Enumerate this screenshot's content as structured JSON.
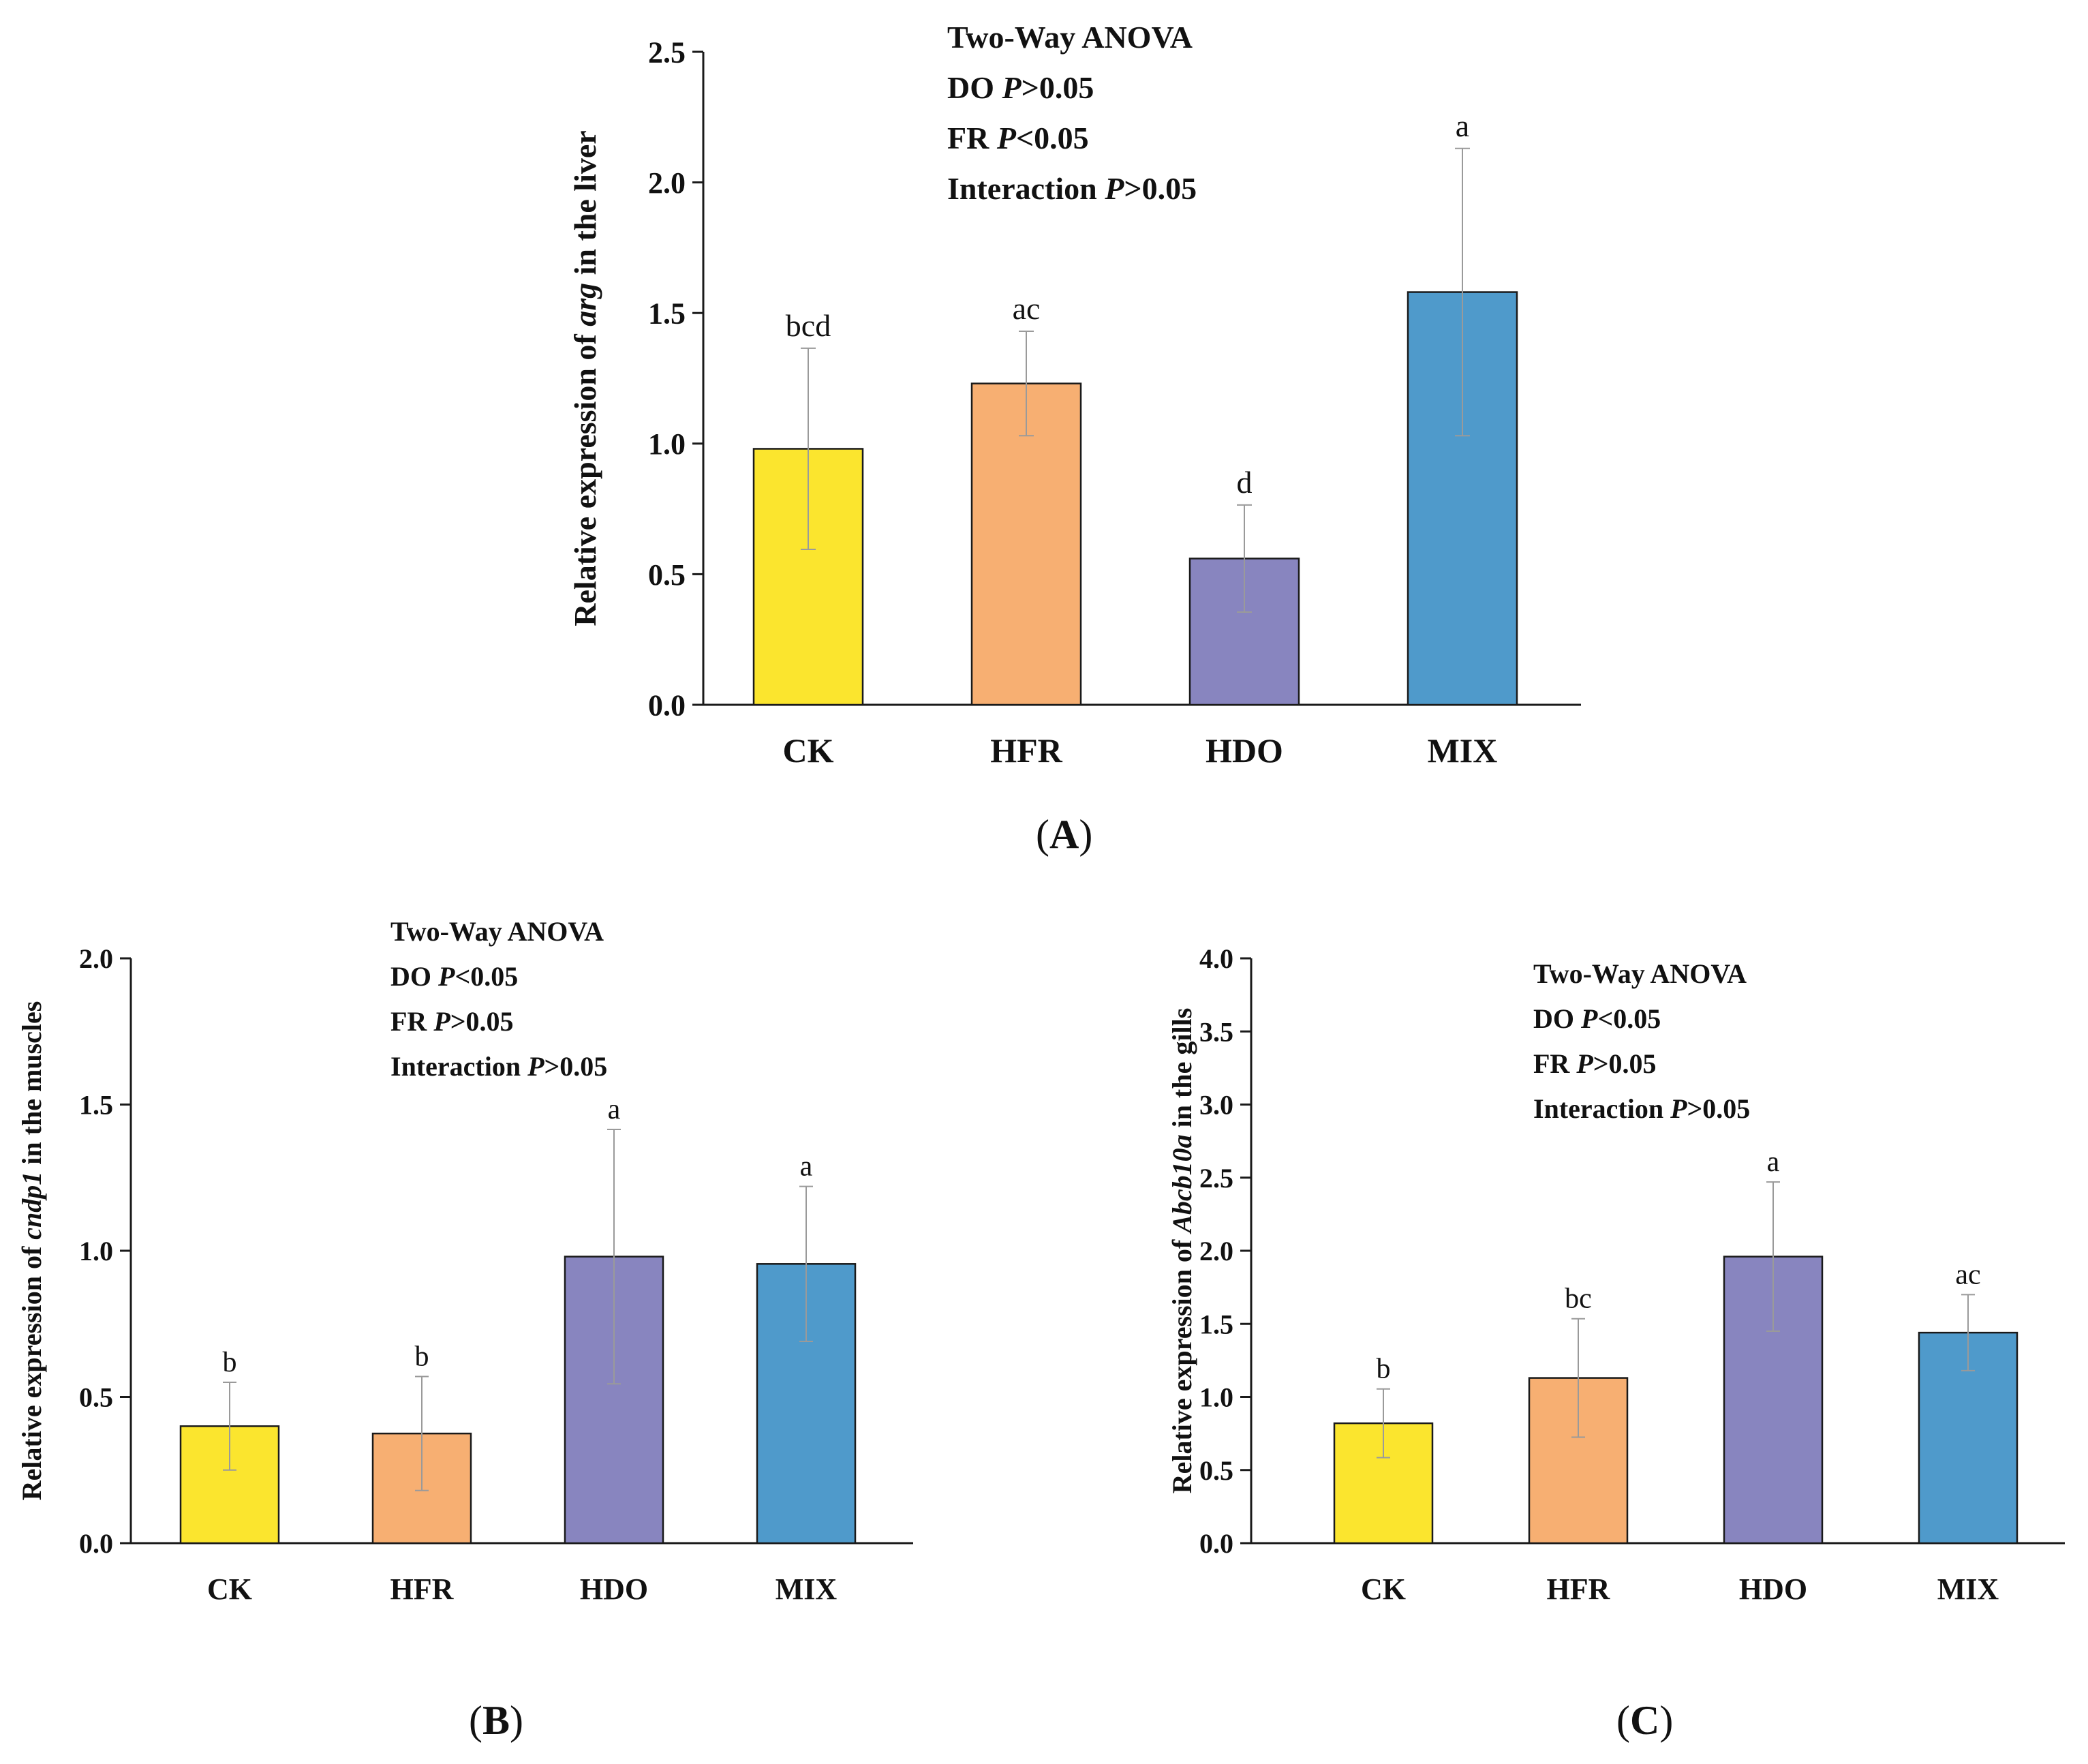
{
  "chart_data": [
    {
      "type": "bar",
      "panel": "A",
      "categories": [
        "CK",
        "HFR",
        "HDO",
        "MIX"
      ],
      "values": [
        0.98,
        1.23,
        0.56,
        1.58
      ],
      "errors": [
        0.385,
        0.2,
        0.205,
        0.55
      ],
      "significance": [
        "bcd",
        "ac",
        "d",
        "a"
      ],
      "ylabel_parts": [
        "Relative expression of ",
        "arg",
        " in the liver"
      ],
      "ylim": [
        0,
        2.5
      ],
      "yticks": [
        "0.0",
        "0.5",
        "1.0",
        "1.5",
        "2.0",
        "2.5"
      ],
      "colors": [
        "#FBE52E",
        "#F7AF72",
        "#8885BF",
        "#4F9ACB"
      ],
      "anova": {
        "title": "Two-Way ANOVA",
        "rows": [
          {
            "factor": "DO",
            "p": "P",
            "cmp": ">0.05"
          },
          {
            "factor": "FR",
            "p": "P",
            "cmp": "<0.05"
          },
          {
            "factor": "Interaction",
            "p": "P",
            "cmp": ">0.05"
          }
        ]
      },
      "grid": false,
      "legend": "none"
    },
    {
      "type": "bar",
      "panel": "B",
      "categories": [
        "CK",
        "HFR",
        "HDO",
        "MIX"
      ],
      "values": [
        0.4,
        0.375,
        0.98,
        0.955
      ],
      "errors": [
        0.15,
        0.195,
        0.435,
        0.265
      ],
      "significance": [
        "b",
        "b",
        "a",
        "a"
      ],
      "ylabel_parts": [
        "Relative expression of ",
        "cndp1",
        " in the muscles"
      ],
      "ylim": [
        0,
        2.0
      ],
      "yticks": [
        "0.0",
        "0.5",
        "1.0",
        "1.5",
        "2.0"
      ],
      "colors": [
        "#FBE52E",
        "#F7AF72",
        "#8885BF",
        "#4F9ACB"
      ],
      "anova": {
        "title": "Two-Way ANOVA",
        "rows": [
          {
            "factor": "DO",
            "p": "P",
            "cmp": "<0.05"
          },
          {
            "factor": "FR",
            "p": "P",
            "cmp": ">0.05"
          },
          {
            "factor": "Interaction",
            "p": "P",
            "cmp": ">0.05"
          }
        ]
      },
      "grid": false,
      "legend": "none"
    },
    {
      "type": "bar",
      "panel": "C",
      "categories": [
        "CK",
        "HFR",
        "HDO",
        "MIX"
      ],
      "values": [
        0.82,
        1.13,
        1.96,
        1.44
      ],
      "errors": [
        0.235,
        0.405,
        0.51,
        0.26
      ],
      "significance": [
        "b",
        "bc",
        "a",
        "ac"
      ],
      "ylabel_parts": [
        "Relative expression of ",
        "Abcb10a",
        " in the gills"
      ],
      "ylim": [
        0,
        4.0
      ],
      "yticks": [
        "0.0",
        "0.5",
        "1.0",
        "1.5",
        "2.0",
        "2.5",
        "3.0",
        "3.5",
        "4.0"
      ],
      "colors": [
        "#FBE52E",
        "#F7AF72",
        "#8885BF",
        "#4F9ACB"
      ],
      "anova": {
        "title": "Two-Way ANOVA",
        "rows": [
          {
            "factor": "DO",
            "p": "P",
            "cmp": "<0.05"
          },
          {
            "factor": "FR",
            "p": "P",
            "cmp": ">0.05"
          },
          {
            "factor": "Interaction",
            "p": "P",
            "cmp": ">0.05"
          }
        ]
      },
      "grid": false,
      "legend": "none"
    }
  ],
  "panel_labels": [
    "A",
    "B",
    "C"
  ]
}
